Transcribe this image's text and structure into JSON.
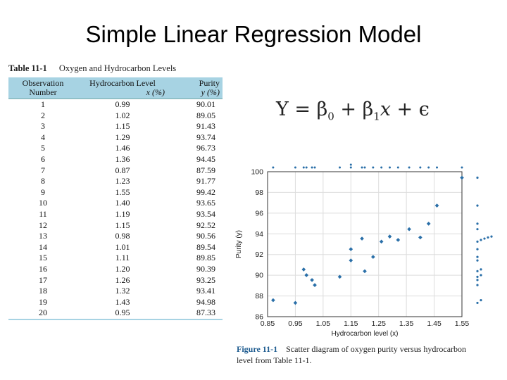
{
  "slide": {
    "title": "Simple Linear Regression Model"
  },
  "table": {
    "number": "Table 11-1",
    "title": "Oxygen and Hydrocarbon Levels",
    "headers": [
      {
        "line1": "Observation",
        "line2": "Number"
      },
      {
        "line1": "Hydrocarbon Level",
        "line2": "x (%)"
      },
      {
        "line1": "Purity",
        "line2": "y (%)"
      }
    ],
    "rows": [
      [
        "1",
        "0.99",
        "90.01"
      ],
      [
        "2",
        "1.02",
        "89.05"
      ],
      [
        "3",
        "1.15",
        "91.43"
      ],
      [
        "4",
        "1.29",
        "93.74"
      ],
      [
        "5",
        "1.46",
        "96.73"
      ],
      [
        "6",
        "1.36",
        "94.45"
      ],
      [
        "7",
        "0.87",
        "87.59"
      ],
      [
        "8",
        "1.23",
        "91.77"
      ],
      [
        "9",
        "1.55",
        "99.42"
      ],
      [
        "10",
        "1.40",
        "93.65"
      ],
      [
        "11",
        "1.19",
        "93.54"
      ],
      [
        "12",
        "1.15",
        "92.52"
      ],
      [
        "13",
        "0.98",
        "90.56"
      ],
      [
        "14",
        "1.01",
        "89.54"
      ],
      [
        "15",
        "1.11",
        "89.85"
      ],
      [
        "16",
        "1.20",
        "90.39"
      ],
      [
        "17",
        "1.26",
        "93.25"
      ],
      [
        "18",
        "1.32",
        "93.41"
      ],
      [
        "19",
        "1.43",
        "94.98"
      ],
      [
        "20",
        "0.95",
        "87.33"
      ]
    ]
  },
  "equation": {
    "text": "Y = β0 + β1x + ϵ"
  },
  "figure": {
    "number": "Figure 11-1",
    "caption": "Scatter diagram of oxygen purity versus hydrocarbon level from Table 11-1."
  },
  "chart_data": {
    "type": "scatter",
    "xlabel": "Hydrocarbon level (x)",
    "ylabel": "Purity (y)",
    "xlim": [
      0.85,
      1.55
    ],
    "ylim": [
      86,
      100
    ],
    "xticks": [
      "0.85",
      "0.95",
      "1.05",
      "1.15",
      "1.25",
      "1.35",
      "1.45",
      "1.55"
    ],
    "yticks": [
      "86",
      "88",
      "90",
      "92",
      "94",
      "96",
      "98",
      "100"
    ],
    "grid": true,
    "x": [
      0.99,
      1.02,
      1.15,
      1.29,
      1.46,
      1.36,
      0.87,
      1.23,
      1.55,
      1.4,
      1.19,
      1.15,
      0.98,
      1.01,
      1.11,
      1.2,
      1.26,
      1.32,
      1.43,
      0.95
    ],
    "y": [
      90.01,
      89.05,
      91.43,
      93.74,
      96.73,
      94.45,
      87.59,
      91.77,
      99.42,
      93.65,
      93.54,
      92.52,
      90.56,
      89.54,
      89.85,
      90.39,
      93.25,
      93.41,
      94.98,
      87.33
    ],
    "top_marginal_x": [
      0.87,
      0.95,
      0.98,
      0.99,
      1.01,
      1.02,
      1.11,
      1.15,
      1.15,
      1.19,
      1.2,
      1.23,
      1.26,
      1.29,
      1.32,
      1.36,
      1.4,
      1.43,
      1.46,
      1.55
    ],
    "right_marginal_y": [
      87.33,
      87.59,
      89.05,
      89.54,
      89.85,
      90.01,
      90.39,
      90.56,
      91.43,
      91.77,
      92.52,
      93.25,
      93.41,
      93.54,
      93.65,
      93.74,
      94.45,
      94.98,
      96.73,
      99.42
    ],
    "point_color": "#2a6fa8"
  }
}
